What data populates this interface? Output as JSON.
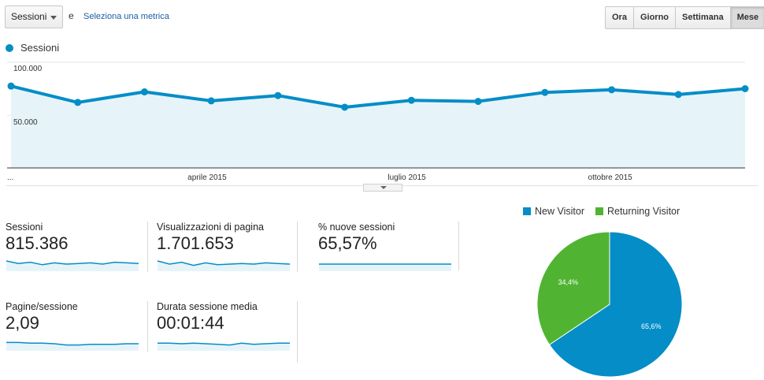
{
  "controls": {
    "metric_select": "Sessioni",
    "conjunction": "e",
    "select_metric_link": "Seleziona una metrica",
    "periods": [
      "Ora",
      "Giorno",
      "Settimana",
      "Mese"
    ],
    "active_period": "Mese"
  },
  "colors": {
    "line": "#058dc7",
    "area": "#e6f4fa",
    "new": "#058dc7",
    "returning": "#50b432"
  },
  "chart_data": [
    {
      "type": "area",
      "series": [
        {
          "name": "Sessioni",
          "values": [
            77500,
            62000,
            72000,
            63500,
            68500,
            57500,
            64000,
            63000,
            71500,
            74000,
            69500,
            75000
          ]
        }
      ],
      "x_tick_labels": [
        "...",
        "aprile 2015",
        "luglio 2015",
        "ottobre 2015"
      ],
      "x_tick_positions": [
        0,
        3,
        6,
        9
      ],
      "y_tick_labels": [
        "100.000",
        "50.000"
      ],
      "ylim": [
        0,
        100000
      ],
      "grid": true
    },
    {
      "type": "pie",
      "slices": [
        {
          "label": "New Visitor",
          "value": 65.6,
          "display": "65,6%"
        },
        {
          "label": "Returning Visitor",
          "value": 34.4,
          "display": "34,4%"
        }
      ],
      "legend_placement": "top"
    }
  ],
  "scorecards": [
    {
      "label": "Sessioni",
      "value": "815.386",
      "spark": [
        60,
        56,
        58,
        54,
        57,
        55,
        56,
        57,
        55,
        58,
        57,
        56
      ]
    },
    {
      "label": "Visualizzazioni di pagina",
      "value": "1.701.653",
      "spark": [
        60,
        55,
        58,
        53,
        57,
        54,
        55,
        56,
        55,
        57,
        56,
        55
      ]
    },
    {
      "label": "% nuove sessioni",
      "value": "65,57%",
      "spark": [
        55,
        55,
        55,
        55,
        55,
        55,
        55,
        55,
        55,
        55,
        55,
        55
      ]
    },
    {
      "label": "Pagine/sessione",
      "value": "2,09",
      "spark": [
        57,
        57,
        56,
        56,
        55,
        53,
        53,
        54,
        54,
        54,
        55,
        55
      ]
    },
    {
      "label": "Durata sessione media",
      "value": "00:01:44",
      "spark": [
        56,
        56,
        55,
        56,
        55,
        54,
        53,
        56,
        54,
        55,
        56,
        56
      ]
    }
  ]
}
